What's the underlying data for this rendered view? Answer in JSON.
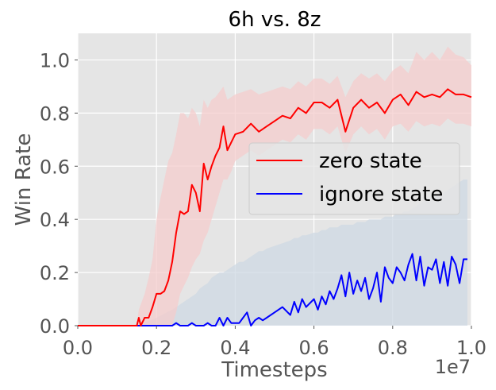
{
  "chart_data": {
    "type": "line",
    "title": "6h vs. 8z",
    "xlabel": "Timesteps",
    "ylabel": "Win Rate",
    "x_offset_label": "1e7",
    "xlim": [
      0.0,
      1.0
    ],
    "ylim": [
      0.0,
      1.1
    ],
    "x_ticks": [
      0.0,
      0.2,
      0.4,
      0.6,
      0.8,
      1.0
    ],
    "x_tick_labels": [
      "0.0",
      "0.2",
      "0.4",
      "0.6",
      "0.8",
      "1.0"
    ],
    "y_ticks": [
      0.0,
      0.2,
      0.4,
      0.6,
      0.8,
      1.0
    ],
    "y_tick_labels": [
      "0.0",
      "0.2",
      "0.4",
      "0.6",
      "0.8",
      "1.0"
    ],
    "grid": true,
    "legend_position": "center-right",
    "background_color": "#e5e5e5",
    "series": [
      {
        "name": "zero state",
        "color": "#ff0000",
        "band_color": "#f4cccc",
        "x": [
          0.0,
          0.05,
          0.1,
          0.15,
          0.155,
          0.16,
          0.17,
          0.18,
          0.19,
          0.2,
          0.21,
          0.22,
          0.23,
          0.24,
          0.25,
          0.26,
          0.27,
          0.28,
          0.29,
          0.3,
          0.31,
          0.32,
          0.33,
          0.34,
          0.35,
          0.36,
          0.37,
          0.38,
          0.39,
          0.4,
          0.42,
          0.44,
          0.46,
          0.48,
          0.5,
          0.52,
          0.54,
          0.56,
          0.58,
          0.6,
          0.62,
          0.64,
          0.66,
          0.68,
          0.7,
          0.72,
          0.74,
          0.76,
          0.78,
          0.8,
          0.82,
          0.84,
          0.86,
          0.88,
          0.9,
          0.92,
          0.94,
          0.96,
          0.98,
          1.0
        ],
        "values": [
          0.0,
          0.0,
          0.0,
          0.0,
          0.03,
          0.0,
          0.03,
          0.03,
          0.07,
          0.12,
          0.12,
          0.13,
          0.17,
          0.24,
          0.35,
          0.43,
          0.42,
          0.43,
          0.53,
          0.5,
          0.43,
          0.61,
          0.55,
          0.6,
          0.64,
          0.67,
          0.75,
          0.66,
          0.69,
          0.72,
          0.73,
          0.76,
          0.73,
          0.75,
          0.77,
          0.79,
          0.78,
          0.82,
          0.8,
          0.84,
          0.84,
          0.82,
          0.85,
          0.73,
          0.82,
          0.85,
          0.82,
          0.84,
          0.8,
          0.85,
          0.87,
          0.83,
          0.88,
          0.86,
          0.87,
          0.86,
          0.89,
          0.87,
          0.87,
          0.86
        ],
        "lower": [
          0.0,
          0.0,
          0.0,
          0.0,
          0.0,
          0.0,
          0.0,
          0.0,
          0.0,
          0.0,
          0.0,
          0.0,
          0.0,
          0.0,
          0.05,
          0.12,
          0.15,
          0.18,
          0.22,
          0.25,
          0.27,
          0.32,
          0.35,
          0.4,
          0.45,
          0.5,
          0.55,
          0.55,
          0.58,
          0.62,
          0.64,
          0.66,
          0.64,
          0.66,
          0.68,
          0.7,
          0.69,
          0.72,
          0.7,
          0.74,
          0.74,
          0.72,
          0.75,
          0.65,
          0.72,
          0.75,
          0.72,
          0.74,
          0.7,
          0.75,
          0.76,
          0.73,
          0.77,
          0.75,
          0.76,
          0.75,
          0.78,
          0.76,
          0.76,
          0.75
        ],
        "upper": [
          0.0,
          0.0,
          0.0,
          0.0,
          0.06,
          0.08,
          0.12,
          0.18,
          0.25,
          0.4,
          0.48,
          0.55,
          0.62,
          0.65,
          0.72,
          0.8,
          0.8,
          0.78,
          0.82,
          0.8,
          0.75,
          0.85,
          0.82,
          0.85,
          0.86,
          0.88,
          0.9,
          0.85,
          0.86,
          0.87,
          0.88,
          0.89,
          0.87,
          0.88,
          0.89,
          0.9,
          0.89,
          0.92,
          0.9,
          0.93,
          0.93,
          0.91,
          0.94,
          0.86,
          0.92,
          0.95,
          0.93,
          0.95,
          0.92,
          0.96,
          0.98,
          0.95,
          1.03,
          1.0,
          1.03,
          1.0,
          1.05,
          1.02,
          1.01,
          0.98
        ]
      },
      {
        "name": "ignore state",
        "color": "#0000ff",
        "band_color": "#cdd8e3",
        "x": [
          0.0,
          0.05,
          0.1,
          0.15,
          0.2,
          0.24,
          0.25,
          0.26,
          0.27,
          0.28,
          0.29,
          0.3,
          0.31,
          0.32,
          0.33,
          0.34,
          0.35,
          0.36,
          0.37,
          0.38,
          0.39,
          0.4,
          0.41,
          0.42,
          0.43,
          0.44,
          0.45,
          0.46,
          0.47,
          0.48,
          0.5,
          0.52,
          0.54,
          0.55,
          0.56,
          0.57,
          0.58,
          0.6,
          0.61,
          0.62,
          0.63,
          0.64,
          0.65,
          0.66,
          0.67,
          0.68,
          0.69,
          0.7,
          0.71,
          0.72,
          0.73,
          0.74,
          0.75,
          0.76,
          0.77,
          0.78,
          0.79,
          0.8,
          0.81,
          0.82,
          0.83,
          0.84,
          0.85,
          0.86,
          0.87,
          0.88,
          0.89,
          0.9,
          0.91,
          0.92,
          0.93,
          0.94,
          0.95,
          0.96,
          0.97,
          0.98,
          0.99
        ],
        "values": [
          0.0,
          0.0,
          0.0,
          0.0,
          0.0,
          0.0,
          0.01,
          0.0,
          0.0,
          0.0,
          0.01,
          0.0,
          0.0,
          0.0,
          0.01,
          0.0,
          0.0,
          0.03,
          0.0,
          0.03,
          0.01,
          0.01,
          0.01,
          0.03,
          0.05,
          0.0,
          0.02,
          0.03,
          0.02,
          0.03,
          0.05,
          0.07,
          0.04,
          0.09,
          0.05,
          0.1,
          0.07,
          0.1,
          0.06,
          0.11,
          0.08,
          0.13,
          0.1,
          0.14,
          0.19,
          0.11,
          0.2,
          0.12,
          0.17,
          0.13,
          0.18,
          0.1,
          0.14,
          0.2,
          0.09,
          0.22,
          0.18,
          0.16,
          0.22,
          0.2,
          0.17,
          0.23,
          0.27,
          0.17,
          0.26,
          0.15,
          0.22,
          0.21,
          0.25,
          0.16,
          0.24,
          0.15,
          0.26,
          0.23,
          0.16,
          0.25,
          0.25
        ],
        "lower": [
          0.0,
          0.0,
          0.0,
          0.0,
          0.0,
          0.0,
          0.0,
          0.0,
          0.0,
          0.0,
          0.0,
          0.0,
          0.0,
          0.0,
          0.0,
          0.0,
          0.0,
          0.0,
          0.0,
          0.0,
          0.0,
          0.0,
          0.0,
          0.0,
          0.0,
          0.0,
          0.0,
          0.0,
          0.0,
          0.0,
          0.0,
          0.0,
          0.0,
          0.0,
          0.0,
          0.0,
          0.0,
          0.0,
          0.0,
          0.0,
          0.0,
          0.0,
          0.0,
          0.0,
          0.0,
          0.0,
          0.0,
          0.0,
          0.0,
          0.0,
          0.0,
          0.0,
          0.0,
          0.0,
          0.0,
          0.0,
          0.0,
          0.0,
          0.0,
          0.0,
          0.0,
          0.0,
          0.0,
          0.0,
          0.0,
          0.0,
          0.0,
          0.0,
          0.0,
          0.0,
          0.0,
          0.0,
          0.0,
          0.0,
          0.0,
          0.0,
          0.0
        ],
        "upper": [
          0.0,
          0.0,
          0.0,
          0.0,
          0.03,
          0.06,
          0.07,
          0.08,
          0.09,
          0.1,
          0.11,
          0.12,
          0.14,
          0.15,
          0.16,
          0.18,
          0.19,
          0.2,
          0.2,
          0.21,
          0.22,
          0.23,
          0.24,
          0.24,
          0.25,
          0.26,
          0.27,
          0.28,
          0.28,
          0.29,
          0.3,
          0.31,
          0.32,
          0.33,
          0.33,
          0.34,
          0.34,
          0.35,
          0.35,
          0.36,
          0.36,
          0.37,
          0.37,
          0.37,
          0.38,
          0.38,
          0.38,
          0.38,
          0.39,
          0.39,
          0.39,
          0.4,
          0.4,
          0.4,
          0.4,
          0.41,
          0.41,
          0.41,
          0.42,
          0.42,
          0.43,
          0.43,
          0.44,
          0.45,
          0.46,
          0.47,
          0.48,
          0.48,
          0.49,
          0.49,
          0.5,
          0.51,
          0.52,
          0.53,
          0.54,
          0.55,
          0.55
        ]
      }
    ]
  }
}
